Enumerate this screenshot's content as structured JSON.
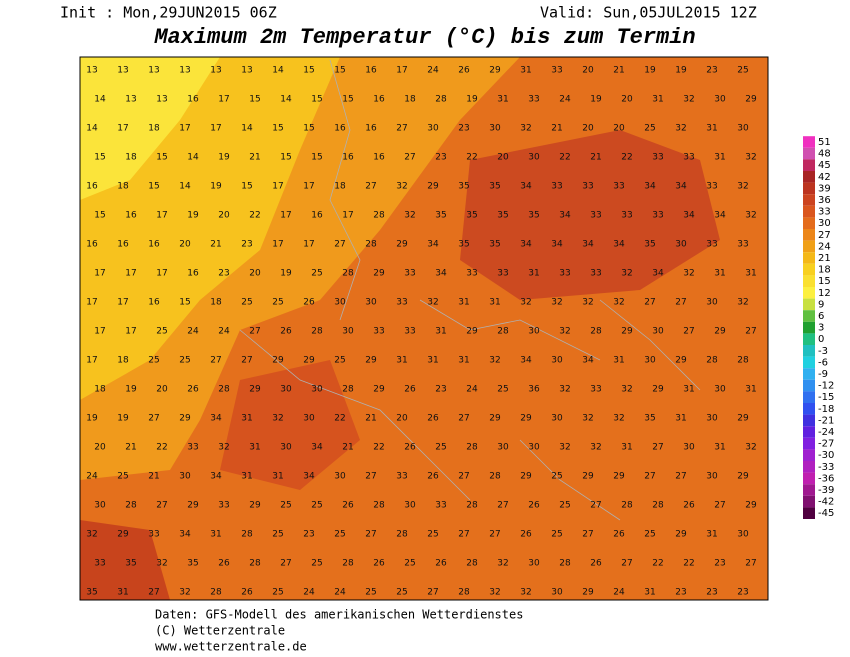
{
  "header": {
    "init": "Init : Mon,29JUN2015 06Z",
    "valid": "Valid: Sun,05JUL2015 12Z",
    "title": "Maximum 2m Temperatur (°C) bis zum Termin"
  },
  "map": {
    "rows": [
      [
        13,
        13,
        13,
        13,
        13,
        13,
        14,
        15,
        15,
        16,
        17,
        24,
        26,
        29,
        31,
        33,
        20,
        21,
        19,
        19,
        23,
        25
      ],
      [
        14,
        13,
        13,
        16,
        17,
        15,
        14,
        15,
        15,
        16,
        18,
        28,
        19,
        31,
        33,
        24,
        19,
        20,
        31,
        32,
        30,
        29
      ],
      [
        14,
        17,
        18,
        17,
        17,
        14,
        15,
        15,
        16,
        16,
        27,
        30,
        23,
        30,
        32,
        21,
        20,
        20,
        25,
        32,
        31,
        30
      ],
      [
        15,
        18,
        15,
        14,
        19,
        21,
        15,
        15,
        16,
        16,
        27,
        23,
        22,
        20,
        30,
        22,
        21,
        22,
        33,
        33,
        31,
        32
      ],
      [
        16,
        18,
        15,
        14,
        19,
        15,
        17,
        17,
        18,
        27,
        32,
        29,
        35,
        35,
        34,
        33,
        33,
        33,
        34,
        34,
        33,
        32
      ],
      [
        15,
        16,
        17,
        19,
        20,
        22,
        17,
        16,
        17,
        28,
        32,
        35,
        35,
        35,
        35,
        34,
        33,
        33,
        33,
        34,
        34,
        32
      ],
      [
        16,
        16,
        16,
        20,
        21,
        23,
        17,
        17,
        27,
        28,
        29,
        34,
        35,
        35,
        34,
        34,
        34,
        34,
        35,
        30,
        33,
        33
      ],
      [
        17,
        17,
        17,
        16,
        23,
        20,
        19,
        25,
        28,
        29,
        33,
        34,
        33,
        33,
        31,
        33,
        33,
        32,
        34,
        32,
        31,
        31
      ],
      [
        17,
        17,
        16,
        15,
        18,
        25,
        25,
        26,
        30,
        30,
        33,
        32,
        31,
        31,
        32,
        32,
        32,
        32,
        27,
        27,
        30,
        32
      ],
      [
        17,
        17,
        25,
        24,
        24,
        27,
        26,
        28,
        30,
        33,
        33,
        31,
        29,
        28,
        30,
        32,
        28,
        29,
        30,
        27,
        29,
        27
      ],
      [
        17,
        18,
        25,
        25,
        27,
        27,
        29,
        29,
        25,
        29,
        31,
        31,
        31,
        32,
        34,
        30,
        34,
        31,
        30,
        29,
        28,
        28
      ],
      [
        18,
        19,
        20,
        26,
        28,
        29,
        30,
        30,
        28,
        29,
        26,
        23,
        24,
        25,
        36,
        32,
        33,
        32,
        29,
        31,
        30,
        31
      ],
      [
        19,
        19,
        27,
        29,
        34,
        31,
        32,
        30,
        22,
        21,
        20,
        26,
        27,
        29,
        29,
        30,
        32,
        32,
        35,
        31,
        30,
        29
      ],
      [
        20,
        21,
        22,
        33,
        32,
        31,
        30,
        34,
        21,
        22,
        26,
        25,
        28,
        30,
        30,
        32,
        32,
        31,
        27,
        30,
        31,
        32
      ],
      [
        24,
        25,
        21,
        30,
        34,
        31,
        31,
        34,
        30,
        27,
        33,
        26,
        27,
        28,
        29,
        25,
        29,
        29,
        27,
        27,
        30,
        29
      ],
      [
        30,
        28,
        27,
        29,
        33,
        29,
        25,
        25,
        26,
        28,
        30,
        33,
        28,
        27,
        26,
        25,
        27,
        28,
        28,
        26,
        27,
        29
      ],
      [
        32,
        29,
        33,
        34,
        31,
        28,
        25,
        23,
        25,
        27,
        28,
        25,
        27,
        27,
        26,
        25,
        27,
        26,
        25,
        29,
        31,
        30
      ],
      [
        33,
        35,
        32,
        35,
        26,
        28,
        27,
        25,
        28,
        26,
        25,
        26,
        28,
        32,
        30,
        28,
        26,
        27,
        22,
        22,
        23,
        27
      ],
      [
        35,
        31,
        27,
        32,
        28,
        26,
        25,
        24,
        24,
        25,
        25,
        27,
        28,
        32,
        32,
        30,
        29,
        24,
        31,
        23,
        23,
        23
      ]
    ]
  },
  "legend": {
    "items": [
      {
        "label": 51,
        "color": "#f030c0"
      },
      {
        "label": 48,
        "color": "#d050b0"
      },
      {
        "label": 45,
        "color": "#c02860"
      },
      {
        "label": 42,
        "color": "#a82424"
      },
      {
        "label": 39,
        "color": "#bc3420"
      },
      {
        "label": 36,
        "color": "#cc4420"
      },
      {
        "label": 33,
        "color": "#da561e"
      },
      {
        "label": 30,
        "color": "#e46c1c"
      },
      {
        "label": 27,
        "color": "#ec861a"
      },
      {
        "label": 24,
        "color": "#f0a018"
      },
      {
        "label": 21,
        "color": "#f4b818"
      },
      {
        "label": 18,
        "color": "#f8d020"
      },
      {
        "label": 15,
        "color": "#fae030"
      },
      {
        "label": 12,
        "color": "#fcf040"
      },
      {
        "label": 9,
        "color": "#c8e040"
      },
      {
        "label": 6,
        "color": "#60c040"
      },
      {
        "label": 3,
        "color": "#20a030"
      },
      {
        "label": 0,
        "color": "#20c080"
      },
      {
        "label": -3,
        "color": "#20c0c0"
      },
      {
        "label": -6,
        "color": "#20d0e0"
      },
      {
        "label": -9,
        "color": "#30b0f0"
      },
      {
        "label": -12,
        "color": "#3090f0"
      },
      {
        "label": -15,
        "color": "#3070f0"
      },
      {
        "label": -18,
        "color": "#3050f0"
      },
      {
        "label": -21,
        "color": "#4030e0"
      },
      {
        "label": -24,
        "color": "#6020e0"
      },
      {
        "label": -27,
        "color": "#8020e0"
      },
      {
        "label": -30,
        "color": "#a020d0"
      },
      {
        "label": -33,
        "color": "#b020c0"
      },
      {
        "label": -36,
        "color": "#c020b0"
      },
      {
        "label": -39,
        "color": "#a01890"
      },
      {
        "label": -42,
        "color": "#801070"
      },
      {
        "label": -45,
        "color": "#500040"
      }
    ]
  },
  "footer": {
    "lines": [
      "Daten: GFS-Modell des amerikanischen Wetterdienstes",
      "(C) Wetterzentrale",
      "www.wetterzentrale.de"
    ]
  }
}
